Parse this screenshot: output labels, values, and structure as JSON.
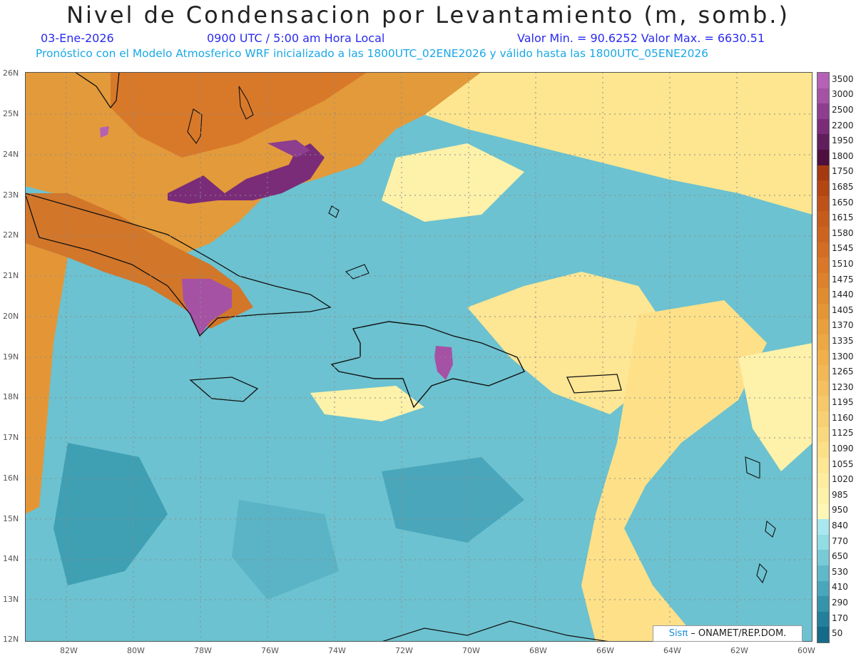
{
  "title": "Nivel de Condensacion por Levantamiento (m, somb.)",
  "date": "03-Ene-2026",
  "time": "0900 UTC / 5:00 am Hora Local",
  "minmax": "Valor Min. = 90.6252   Valor Max. = 6630.51",
  "subtitle": "Pronóstico con el Modelo Atmosferico WRF inicializado a las 1800UTC_02ENE2026 y válido hasta las  1800UTC_05ENE2026",
  "lat_labels": [
    "26N",
    "25N",
    "24N",
    "23N",
    "22N",
    "21N",
    "20N",
    "19N",
    "18N",
    "17N",
    "16N",
    "15N",
    "14N",
    "13N",
    "12N"
  ],
  "lon_labels": [
    "82W",
    "80W",
    "78W",
    "76W",
    "74W",
    "72W",
    "70W",
    "68W",
    "66W",
    "64W",
    "62W",
    "60W"
  ],
  "colorbar": {
    "labels": [
      "3500",
      "3000",
      "2500",
      "2200",
      "1950",
      "1800",
      "1750",
      "1685",
      "1650",
      "1615",
      "1580",
      "1545",
      "1510",
      "1475",
      "1440",
      "1405",
      "1370",
      "1335",
      "1300",
      "1265",
      "1230",
      "1195",
      "1160",
      "1125",
      "1090",
      "1055",
      "1020",
      "985",
      "950",
      "840",
      "770",
      "650",
      "530",
      "410",
      "290",
      "170",
      "50"
    ],
    "colors": [
      "#b561b5",
      "#a552a5",
      "#8e3e8e",
      "#7a2c78",
      "#611e5c",
      "#4e0f3e",
      "#a33a12",
      "#b44614",
      "#be5218",
      "#c65c1c",
      "#cc6420",
      "#d26e24",
      "#d87828",
      "#dc822c",
      "#e08c30",
      "#e49636",
      "#e8a03c",
      "#eca844",
      "#f0b04c",
      "#f2b856",
      "#f4c060",
      "#f6c86a",
      "#f8d074",
      "#fad87e",
      "#fce088",
      "#fde694",
      "#feeca0",
      "#fef1aa",
      "#fef6b6",
      "#a8e8ee",
      "#92dce4",
      "#78cbd6",
      "#60b8c8",
      "#4aa6ba",
      "#3694aa",
      "#24809a",
      "#156b88"
    ]
  },
  "credit": {
    "brand": "Sis",
    "pi": "π",
    "text": " – ONAMET/REP.DOM."
  }
}
